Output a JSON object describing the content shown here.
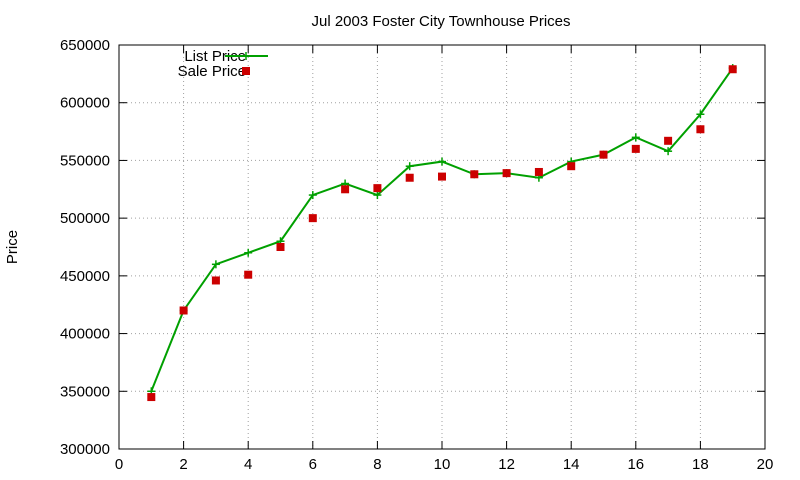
{
  "chart_data": {
    "type": "line",
    "title": "Jul 2003 Foster City Townhouse Prices",
    "xlabel": "",
    "ylabel": "Price",
    "xlim": [
      0,
      20
    ],
    "ylim": [
      300000,
      650000
    ],
    "xticks": [
      0,
      2,
      4,
      6,
      8,
      10,
      12,
      14,
      16,
      18,
      20
    ],
    "yticks": [
      300000,
      350000,
      400000,
      450000,
      500000,
      550000,
      600000,
      650000
    ],
    "grid": true,
    "legend_position": "top-left",
    "series": [
      {
        "name": "List Price",
        "style": "line-plus",
        "color": "#00a000",
        "x": [
          1,
          2,
          3,
          4,
          5,
          6,
          7,
          8,
          9,
          10,
          11,
          12,
          13,
          14,
          15,
          16,
          17,
          18,
          19
        ],
        "y": [
          350000,
          420000,
          460000,
          470000,
          480000,
          520000,
          530000,
          520000,
          545000,
          549000,
          538000,
          539000,
          535000,
          549000,
          555000,
          570000,
          558000,
          590000,
          630000
        ]
      },
      {
        "name": "Sale Price",
        "style": "square-marker",
        "color": "#cc0000",
        "x": [
          1,
          2,
          3,
          4,
          5,
          6,
          7,
          8,
          9,
          10,
          11,
          12,
          13,
          14,
          15,
          16,
          17,
          18,
          19
        ],
        "y": [
          345000,
          420000,
          446000,
          451000,
          475000,
          500000,
          525000,
          526000,
          535000,
          536000,
          538000,
          539000,
          540000,
          545000,
          555000,
          560000,
          567000,
          577000,
          629000
        ]
      }
    ]
  }
}
